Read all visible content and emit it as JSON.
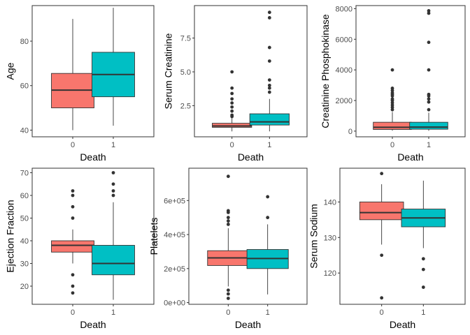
{
  "chart_data": [
    {
      "type": "box",
      "xlabel": "Death",
      "ylabel": "Age",
      "categories": [
        "0",
        "1"
      ],
      "ylim": [
        37,
        96
      ],
      "yticks": [
        40,
        60,
        80
      ],
      "ytick_labels": [
        "40",
        "60",
        "80"
      ],
      "boxes": [
        {
          "category": "0",
          "min": 40,
          "q1": 50,
          "median": 58,
          "q3": 65.5,
          "max": 90,
          "outliers": [],
          "color": "#F8766D"
        },
        {
          "category": "1",
          "min": 42,
          "q1": 55,
          "median": 65,
          "q3": 75,
          "max": 95,
          "outliers": [],
          "color": "#00BFC4"
        }
      ]
    },
    {
      "type": "box",
      "xlabel": "Death",
      "ylabel": "Serum Creatinine",
      "categories": [
        "0",
        "1"
      ],
      "ylim": [
        0.2,
        9.9
      ],
      "yticks": [
        2.5,
        5.0,
        7.5
      ],
      "ytick_labels": [
        "2.5",
        "5.0",
        "7.5"
      ],
      "boxes": [
        {
          "category": "0",
          "min": 0.6,
          "q1": 0.9,
          "median": 1.0,
          "q3": 1.2,
          "max": 1.6,
          "outliers": [
            1.7,
            1.8,
            2.1,
            2.4,
            2.7,
            3.0,
            3.4,
            3.8,
            5.0
          ],
          "color": "#F8766D"
        },
        {
          "category": "1",
          "min": 0.6,
          "q1": 1.07,
          "median": 1.3,
          "q3": 1.9,
          "max": 3.0,
          "outliers": [
            3.5,
            3.8,
            4.0,
            4.4,
            5.8,
            6.8,
            9.0,
            9.4
          ],
          "color": "#00BFC4"
        }
      ]
    },
    {
      "type": "box",
      "xlabel": "Death",
      "ylabel": "Creatinine Phosphokinase",
      "categories": [
        "0",
        "1"
      ],
      "ylim": [
        -370,
        8200
      ],
      "yticks": [
        0,
        2000,
        4000,
        6000,
        8000
      ],
      "ytick_labels": [
        "0",
        "2000",
        "4000",
        "6000",
        "8000"
      ],
      "boxes": [
        {
          "category": "0",
          "min": 30,
          "q1": 110,
          "median": 250,
          "q3": 580,
          "max": 1250,
          "outliers": [
            1400,
            1550,
            1700,
            1850,
            2000,
            2100,
            2300,
            2400,
            2500,
            2650,
            2800,
            4000
          ],
          "color": "#F8766D"
        },
        {
          "category": "1",
          "min": 25,
          "q1": 125,
          "median": 260,
          "q3": 580,
          "max": 1200,
          "outliers": [
            1400,
            1900,
            2100,
            2300,
            2400,
            4000,
            5800,
            7700,
            7860
          ],
          "color": "#00BFC4"
        }
      ]
    },
    {
      "type": "box",
      "xlabel": "Death",
      "ylabel": "Ejection Fraction",
      "categories": [
        "0",
        "1"
      ],
      "ylim": [
        12,
        72
      ],
      "yticks": [
        20,
        30,
        40,
        50,
        60,
        70
      ],
      "ytick_labels": [
        "20",
        "30",
        "40",
        "50",
        "60",
        "70"
      ],
      "boxes": [
        {
          "category": "0",
          "min": 30,
          "q1": 35,
          "median": 38,
          "q3": 40,
          "max": 45,
          "outliers": [
            17,
            20,
            25,
            50,
            55,
            60,
            62
          ],
          "color": "#F8766D"
        },
        {
          "category": "1",
          "min": 14,
          "q1": 25,
          "median": 30,
          "q3": 38,
          "max": 57,
          "outliers": [
            60,
            62,
            65,
            70
          ],
          "color": "#00BFC4"
        }
      ]
    },
    {
      "type": "box",
      "xlabel": "Death",
      "ylabel": "Platelets",
      "categories": [
        "0",
        "1"
      ],
      "ylim": [
        -10000,
        790000
      ],
      "yticks": [
        0,
        200000,
        400000,
        600000
      ],
      "ytick_labels": [
        "0e+00",
        "2e+05",
        "4e+05",
        "6e+05"
      ],
      "boxes": [
        {
          "category": "0",
          "min": 95000,
          "q1": 218000,
          "median": 263000,
          "q3": 305000,
          "max": 437000,
          "outliers": [
            25000,
            51000,
            73000,
            460000,
            480000,
            500000,
            530000,
            540000,
            742000
          ],
          "color": "#F8766D"
        },
        {
          "category": "1",
          "min": 48000,
          "q1": 200000,
          "median": 259000,
          "q3": 312000,
          "max": 460000,
          "outliers": [
            500000,
            622000
          ],
          "color": "#00BFC4"
        }
      ]
    },
    {
      "type": "box",
      "xlabel": "Death",
      "ylabel": "Serum Sodium",
      "categories": [
        "0",
        "1"
      ],
      "ylim": [
        111.2,
        149.5
      ],
      "yticks": [
        120,
        130,
        140
      ],
      "ytick_labels": [
        "120",
        "130",
        "140"
      ],
      "boxes": [
        {
          "category": "0",
          "min": 128,
          "q1": 135,
          "median": 137,
          "q3": 140,
          "max": 145,
          "outliers": [
            113,
            125,
            148
          ],
          "color": "#F8766D"
        },
        {
          "category": "1",
          "min": 127,
          "q1": 133,
          "median": 135.5,
          "q3": 138,
          "max": 146,
          "outliers": [
            116,
            121,
            124
          ],
          "color": "#00BFC4"
        }
      ]
    }
  ]
}
